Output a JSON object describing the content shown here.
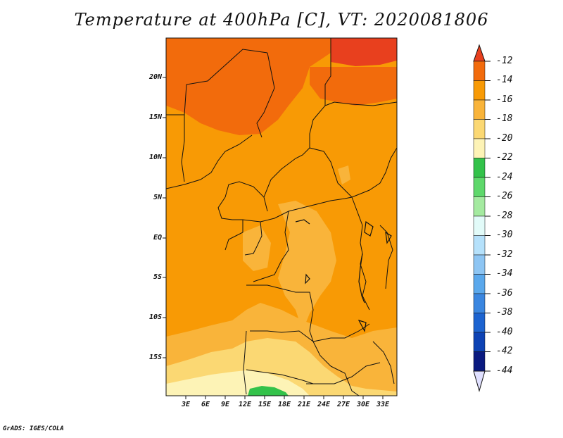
{
  "title": "Temperature at 400hPa [C], VT: 2020081806",
  "credit": "GrADS: IGES/COLA",
  "map": {
    "lat_labels": [
      "20N",
      "15N",
      "10N",
      "5N",
      "EQ",
      "5S",
      "10S",
      "15S"
    ],
    "lon_labels": [
      "3E",
      "6E",
      "9E",
      "12E",
      "15E",
      "18E",
      "21E",
      "24E",
      "27E",
      "30E",
      "33E"
    ]
  },
  "colorbar": {
    "labels": [
      "-12",
      "-14",
      "-16",
      "-18",
      "-20",
      "-22",
      "-24",
      "-26",
      "-28",
      "-30",
      "-32",
      "-34",
      "-36",
      "-38",
      "-40",
      "-42",
      "-44"
    ],
    "colors": [
      "#e8401e",
      "#f26b0c",
      "#f89a05",
      "#f9b43a",
      "#fbd873",
      "#fdf3b6",
      "#33c24a",
      "#5ed86b",
      "#a4eaa0",
      "#e2fbf9",
      "#b5e1fb",
      "#8dc5f3",
      "#5aa8ec",
      "#3a86e0",
      "#1c63d0",
      "#0d42b4",
      "#0a1a80",
      "#e0e0ff"
    ]
  },
  "legend_colors": {
    "c_m12_m14": "#e8401e",
    "c_m14_m16": "#f26b0c",
    "c_m16_m18": "#f89a05",
    "c_m18_m20": "#f9b43a",
    "c_m20_m22": "#fbd873",
    "c_m22_m24": "#fdf3b6",
    "c_green": "#33c24a"
  }
}
